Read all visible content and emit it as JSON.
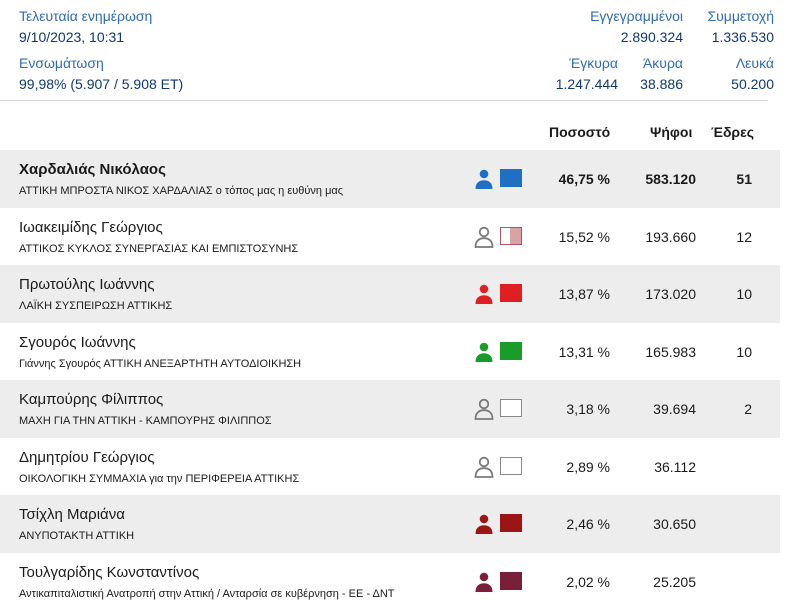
{
  "header": {
    "last_update_label": "Τελευταία ενημέρωση",
    "last_update_value": "9/10/2023, 10:31",
    "integration_label": "Ενσωμάτωση",
    "integration_value": "99,98% (5.907 / 5.908 ΕΤ)",
    "registered_label": "Εγγεγραμμένοι",
    "registered_value": "2.890.324",
    "turnout_label": "Συμμετοχή",
    "turnout_value": "1.336.530",
    "valid_label": "Έγκυρα",
    "valid_value": "1.247.444",
    "invalid_label": "Άκυρα",
    "invalid_value": "38.886",
    "blank_label": "Λευκά",
    "blank_value": "50.200"
  },
  "columns": {
    "percent": "Ποσοστό",
    "votes": "Ψήφοι",
    "seats": "Έδρες"
  },
  "colors": {
    "accent": "#2f6bb3",
    "dark_blue": "#10386e",
    "row_shade": "#ededed"
  },
  "results": [
    {
      "name": "Χαρδαλιάς Νικόλαος",
      "party": "ΑΤΤΙΚΗ ΜΠΡΟΣΤΑ ΝΙΚΟΣ ΧΑΡΔΑΛΙΑΣ ο τόπος μας η ευθύνη μας",
      "percent": "46,75 %",
      "votes": "583.120",
      "seats": "51",
      "icon_color": "#1f6fc5",
      "swatch_fill": "#1f6fc5",
      "swatch_border": "#1f6fc5",
      "swatch_half": false
    },
    {
      "name": "Ιωακειμίδης Γεώργιος",
      "party": "ΑΤΤΙΚΟΣ ΚΥΚΛΟΣ ΣΥΝΕΡΓΑΣΙΑΣ ΚΑΙ ΕΜΠΙΣΤΟΣΥΝΗΣ",
      "percent": "15,52 %",
      "votes": "193.660",
      "seats": "12",
      "icon_color": "#7a7a7a",
      "swatch_fill": "#d9a2a6",
      "swatch_border": "#b05060",
      "swatch_half": true
    },
    {
      "name": "Πρωτούλης Ιωάννης",
      "party": "ΛΑΪΚΗ ΣΥΣΠΕΙΡΩΣΗ ΑΤΤΙΚΗΣ",
      "percent": "13,87 %",
      "votes": "173.020",
      "seats": "10",
      "icon_color": "#e02020",
      "swatch_fill": "#e02020",
      "swatch_border": "#e02020",
      "swatch_half": false
    },
    {
      "name": "Σγουρός Ιωάννης",
      "party": "Γιάννης Σγουρός ΑΤΤΙΚΗ ΑΝΕΞΑΡΤΗΤΗ ΑΥΤΟΔΙΟΙΚΗΣΗ",
      "percent": "13,31 %",
      "votes": "165.983",
      "seats": "10",
      "icon_color": "#1a9c2b",
      "swatch_fill": "#1a9c2b",
      "swatch_border": "#1a9c2b",
      "swatch_half": false
    },
    {
      "name": "Καμπούρης Φίλιππος",
      "party": "ΜΑΧΗ ΓΙΑ ΤΗΝ ΑΤΤΙΚΗ - ΚΑΜΠΟΥΡΗΣ ΦΙΛΙΠΠΟΣ",
      "percent": "3,18 %",
      "votes": "39.694",
      "seats": "2",
      "icon_color": "#7a7a7a",
      "swatch_fill": "#ffffff",
      "swatch_border": "#8a8a8a",
      "swatch_half": false
    },
    {
      "name": "Δημητρίου Γεώργιος",
      "party": "ΟΙΚΟΛΟΓΙΚΗ ΣΥΜΜΑΧΙΑ για την ΠΕΡΙΦΕΡΕΙΑ ΑΤΤΙΚΗΣ",
      "percent": "2,89 %",
      "votes": "36.112",
      "seats": "",
      "icon_color": "#7a7a7a",
      "swatch_fill": "#ffffff",
      "swatch_border": "#8a8a8a",
      "swatch_half": false
    },
    {
      "name": "Τσίχλη Μαριάνα",
      "party": "ΑΝΥΠΟΤΑΚΤΗ ΑΤΤΙΚΗ",
      "percent": "2,46 %",
      "votes": "30.650",
      "seats": "",
      "icon_color": "#9b1515",
      "swatch_fill": "#9b1515",
      "swatch_border": "#9b1515",
      "swatch_half": false
    },
    {
      "name": "Τουλγαρίδης Κωνσταντίνος",
      "party": "Αντικαπιταλιστική Ανατροπή στην Αττική / Ανταρσία σε κυβέρνηση - ΕΕ - ΔΝΤ",
      "percent": "2,02 %",
      "votes": "25.205",
      "seats": "",
      "icon_color": "#7a1f3a",
      "swatch_fill": "#7a1f3a",
      "swatch_border": "#7a1f3a",
      "swatch_half": false
    }
  ]
}
